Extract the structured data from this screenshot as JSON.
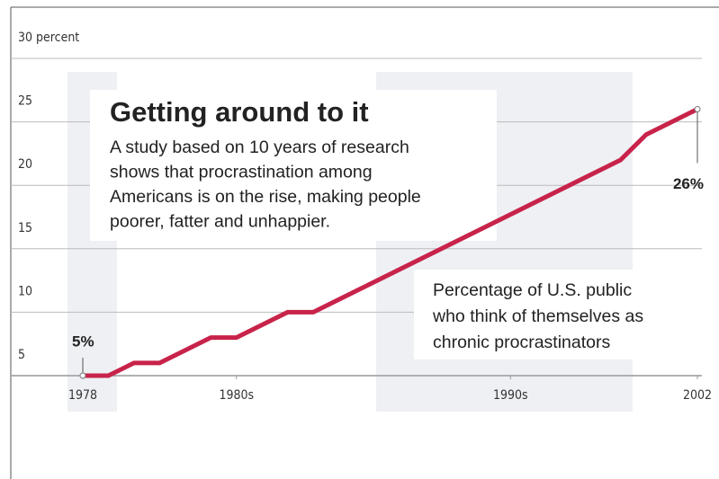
{
  "chart_data": {
    "type": "line",
    "title": "Getting around to it",
    "subtitle": [
      "A study based on 10 years of research",
      "shows that procrastination among",
      "Americans is on the rise, making  people",
      "poorer, fatter and unhappier."
    ],
    "annotation": [
      "Percentage of U.S. public",
      "who think of themselves as",
      "chronic procrastinators"
    ],
    "x": [
      1978,
      1979,
      1980,
      1981,
      1983,
      1984,
      1986,
      1987,
      1999,
      2000,
      2002
    ],
    "series": [
      {
        "name": null,
        "color": "#c8234a",
        "values": [
          5,
          5,
          6,
          6,
          8,
          8,
          10,
          10,
          22,
          24,
          26
        ],
        "value_labels": [
          "5%",
          null,
          null,
          null,
          null,
          null,
          null,
          null,
          null,
          null,
          "26%"
        ]
      }
    ],
    "xlim": [
      1978,
      2002
    ],
    "xticks": [
      1978,
      {
        "value": 1984,
        "label": "1980s"
      },
      {
        "value": 1994.7,
        "label": "1990s"
      },
      2002
    ],
    "ylim": [
      5,
      30
    ],
    "yticks": [
      5,
      10,
      15,
      20,
      25,
      {
        "value": 30,
        "label": "30 percent"
      }
    ],
    "grid": true
  }
}
